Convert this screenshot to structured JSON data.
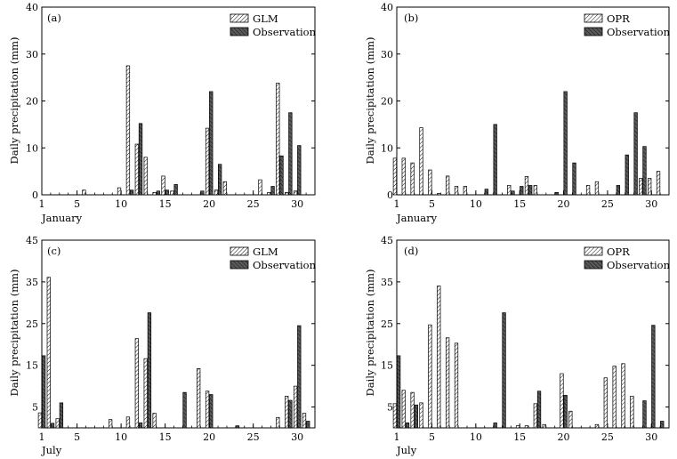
{
  "colors": {
    "model_fill": "#ffffff",
    "model_hatch": "#000000",
    "obs_fill": "#5a5a5a",
    "obs_hatch": "#1a1a1a",
    "axis": "#000000"
  },
  "chart_data": [
    {
      "type": "bar",
      "panel_label": "(a)",
      "xlabel": "January",
      "ylabel": "Daily precipitation (mm)",
      "ylim": [
        0,
        40
      ],
      "yticks": [
        0,
        10,
        20,
        30,
        40
      ],
      "xticks": [
        1,
        5,
        10,
        15,
        20,
        25,
        30
      ],
      "legend_position": "top-right",
      "x": [
        1,
        2,
        3,
        4,
        5,
        6,
        7,
        8,
        9,
        10,
        11,
        12,
        13,
        14,
        15,
        16,
        17,
        18,
        19,
        20,
        21,
        22,
        23,
        24,
        25,
        26,
        27,
        28,
        29,
        30,
        31
      ],
      "series": [
        {
          "name": "GLM",
          "style": "model",
          "values": [
            0,
            0,
            0,
            0,
            0,
            1.0,
            0,
            0,
            0,
            1.5,
            27.5,
            10.8,
            8.0,
            0.5,
            4.0,
            0.8,
            0,
            0,
            0,
            14.2,
            1.0,
            2.8,
            0,
            0,
            0,
            3.2,
            0.5,
            23.8,
            0.5,
            0.8,
            0
          ]
        },
        {
          "name": "Observation",
          "style": "obs",
          "values": [
            0,
            0,
            0,
            0,
            0,
            0,
            0,
            0,
            0,
            0,
            1.0,
            15.2,
            0,
            0.8,
            1.0,
            2.2,
            0,
            0,
            0.8,
            22.0,
            6.5,
            0,
            0,
            0,
            0,
            0,
            1.8,
            8.3,
            17.5,
            10.5,
            0
          ]
        }
      ]
    },
    {
      "type": "bar",
      "panel_label": "(b)",
      "xlabel": "January",
      "ylabel": "Daily precipitation (mm)",
      "ylim": [
        0,
        40
      ],
      "yticks": [
        0,
        10,
        20,
        30,
        40
      ],
      "xticks": [
        1,
        5,
        10,
        15,
        20,
        25,
        30
      ],
      "legend_position": "top-right",
      "x": [
        1,
        2,
        3,
        4,
        5,
        6,
        7,
        8,
        9,
        10,
        11,
        12,
        13,
        14,
        15,
        16,
        17,
        18,
        19,
        20,
        21,
        22,
        23,
        24,
        25,
        26,
        27,
        28,
        29,
        30,
        31
      ],
      "series": [
        {
          "name": "OPR",
          "style": "model",
          "values": [
            7.8,
            7.8,
            6.8,
            14.3,
            5.3,
            0.3,
            4.0,
            1.8,
            1.8,
            0,
            0,
            0,
            0,
            2.0,
            0,
            3.9,
            2.0,
            0,
            0,
            0,
            0,
            0,
            2.0,
            2.8,
            0,
            0,
            0,
            0,
            3.5,
            3.5,
            5.0
          ]
        },
        {
          "name": "Observation",
          "style": "obs",
          "values": [
            0,
            0,
            0,
            0,
            0,
            0,
            0,
            0,
            0,
            0,
            1.2,
            15.0,
            0,
            0.8,
            1.8,
            2.0,
            0,
            0,
            0.5,
            22.0,
            6.8,
            0,
            0,
            0,
            0,
            2.0,
            8.5,
            17.5,
            10.3,
            0,
            0
          ]
        }
      ]
    },
    {
      "type": "bar",
      "panel_label": "(c)",
      "xlabel": "July",
      "ylabel": "Daily precipitation (mm)",
      "ylim": [
        0,
        45
      ],
      "yticks": [
        5,
        15,
        25,
        35,
        45
      ],
      "xticks": [
        1,
        5,
        10,
        15,
        20,
        25,
        30
      ],
      "legend_position": "top-right",
      "x": [
        1,
        2,
        3,
        4,
        5,
        6,
        7,
        8,
        9,
        10,
        11,
        12,
        13,
        14,
        15,
        16,
        17,
        18,
        19,
        20,
        21,
        22,
        23,
        24,
        25,
        26,
        27,
        28,
        29,
        30,
        31
      ],
      "series": [
        {
          "name": "GLM",
          "style": "model",
          "values": [
            3.6,
            36.1,
            2.2,
            0,
            0,
            0,
            0,
            0,
            2.0,
            0,
            2.6,
            21.4,
            16.6,
            3.5,
            0,
            0,
            0,
            0,
            14.2,
            8.8,
            0,
            0,
            0,
            0,
            0,
            0,
            0,
            2.5,
            7.6,
            10.0,
            3.5
          ]
        },
        {
          "name": "Observation",
          "style": "obs",
          "values": [
            17.3,
            1.1,
            6.0,
            0,
            0,
            0,
            0,
            0,
            0,
            0,
            0,
            1.2,
            27.6,
            0,
            0,
            0,
            8.5,
            0,
            0,
            8.0,
            0,
            0,
            0.5,
            0,
            0,
            0,
            0,
            0,
            6.6,
            24.5,
            1.6
          ]
        }
      ]
    },
    {
      "type": "bar",
      "panel_label": "(d)",
      "xlabel": "July",
      "ylabel": "Daily precipitation (mm)",
      "ylim": [
        0,
        45
      ],
      "yticks": [
        5,
        15,
        25,
        35,
        45
      ],
      "xticks": [
        1,
        5,
        10,
        15,
        20,
        25,
        30
      ],
      "legend_position": "top-right",
      "x": [
        1,
        2,
        3,
        4,
        5,
        6,
        7,
        8,
        9,
        10,
        11,
        12,
        13,
        14,
        15,
        16,
        17,
        18,
        19,
        20,
        21,
        22,
        23,
        24,
        25,
        26,
        27,
        28,
        29,
        30,
        31
      ],
      "series": [
        {
          "name": "OPR",
          "style": "model",
          "values": [
            5.8,
            9.0,
            8.5,
            6.0,
            24.7,
            34.0,
            21.6,
            20.3,
            0,
            0,
            0,
            0,
            0,
            0,
            0.5,
            0.5,
            5.8,
            0.8,
            0,
            13.0,
            4.0,
            0,
            0,
            0.8,
            12.0,
            14.8,
            15.4,
            7.6,
            0,
            0,
            0
          ]
        },
        {
          "name": "Observation",
          "style": "obs",
          "values": [
            17.3,
            1.2,
            5.5,
            0,
            0,
            0,
            0,
            0,
            0,
            0,
            0,
            1.2,
            27.6,
            0,
            0,
            0,
            8.8,
            0,
            0,
            7.8,
            0,
            0,
            0,
            0,
            0,
            0,
            0,
            0,
            6.5,
            24.6,
            1.6
          ]
        }
      ]
    }
  ]
}
